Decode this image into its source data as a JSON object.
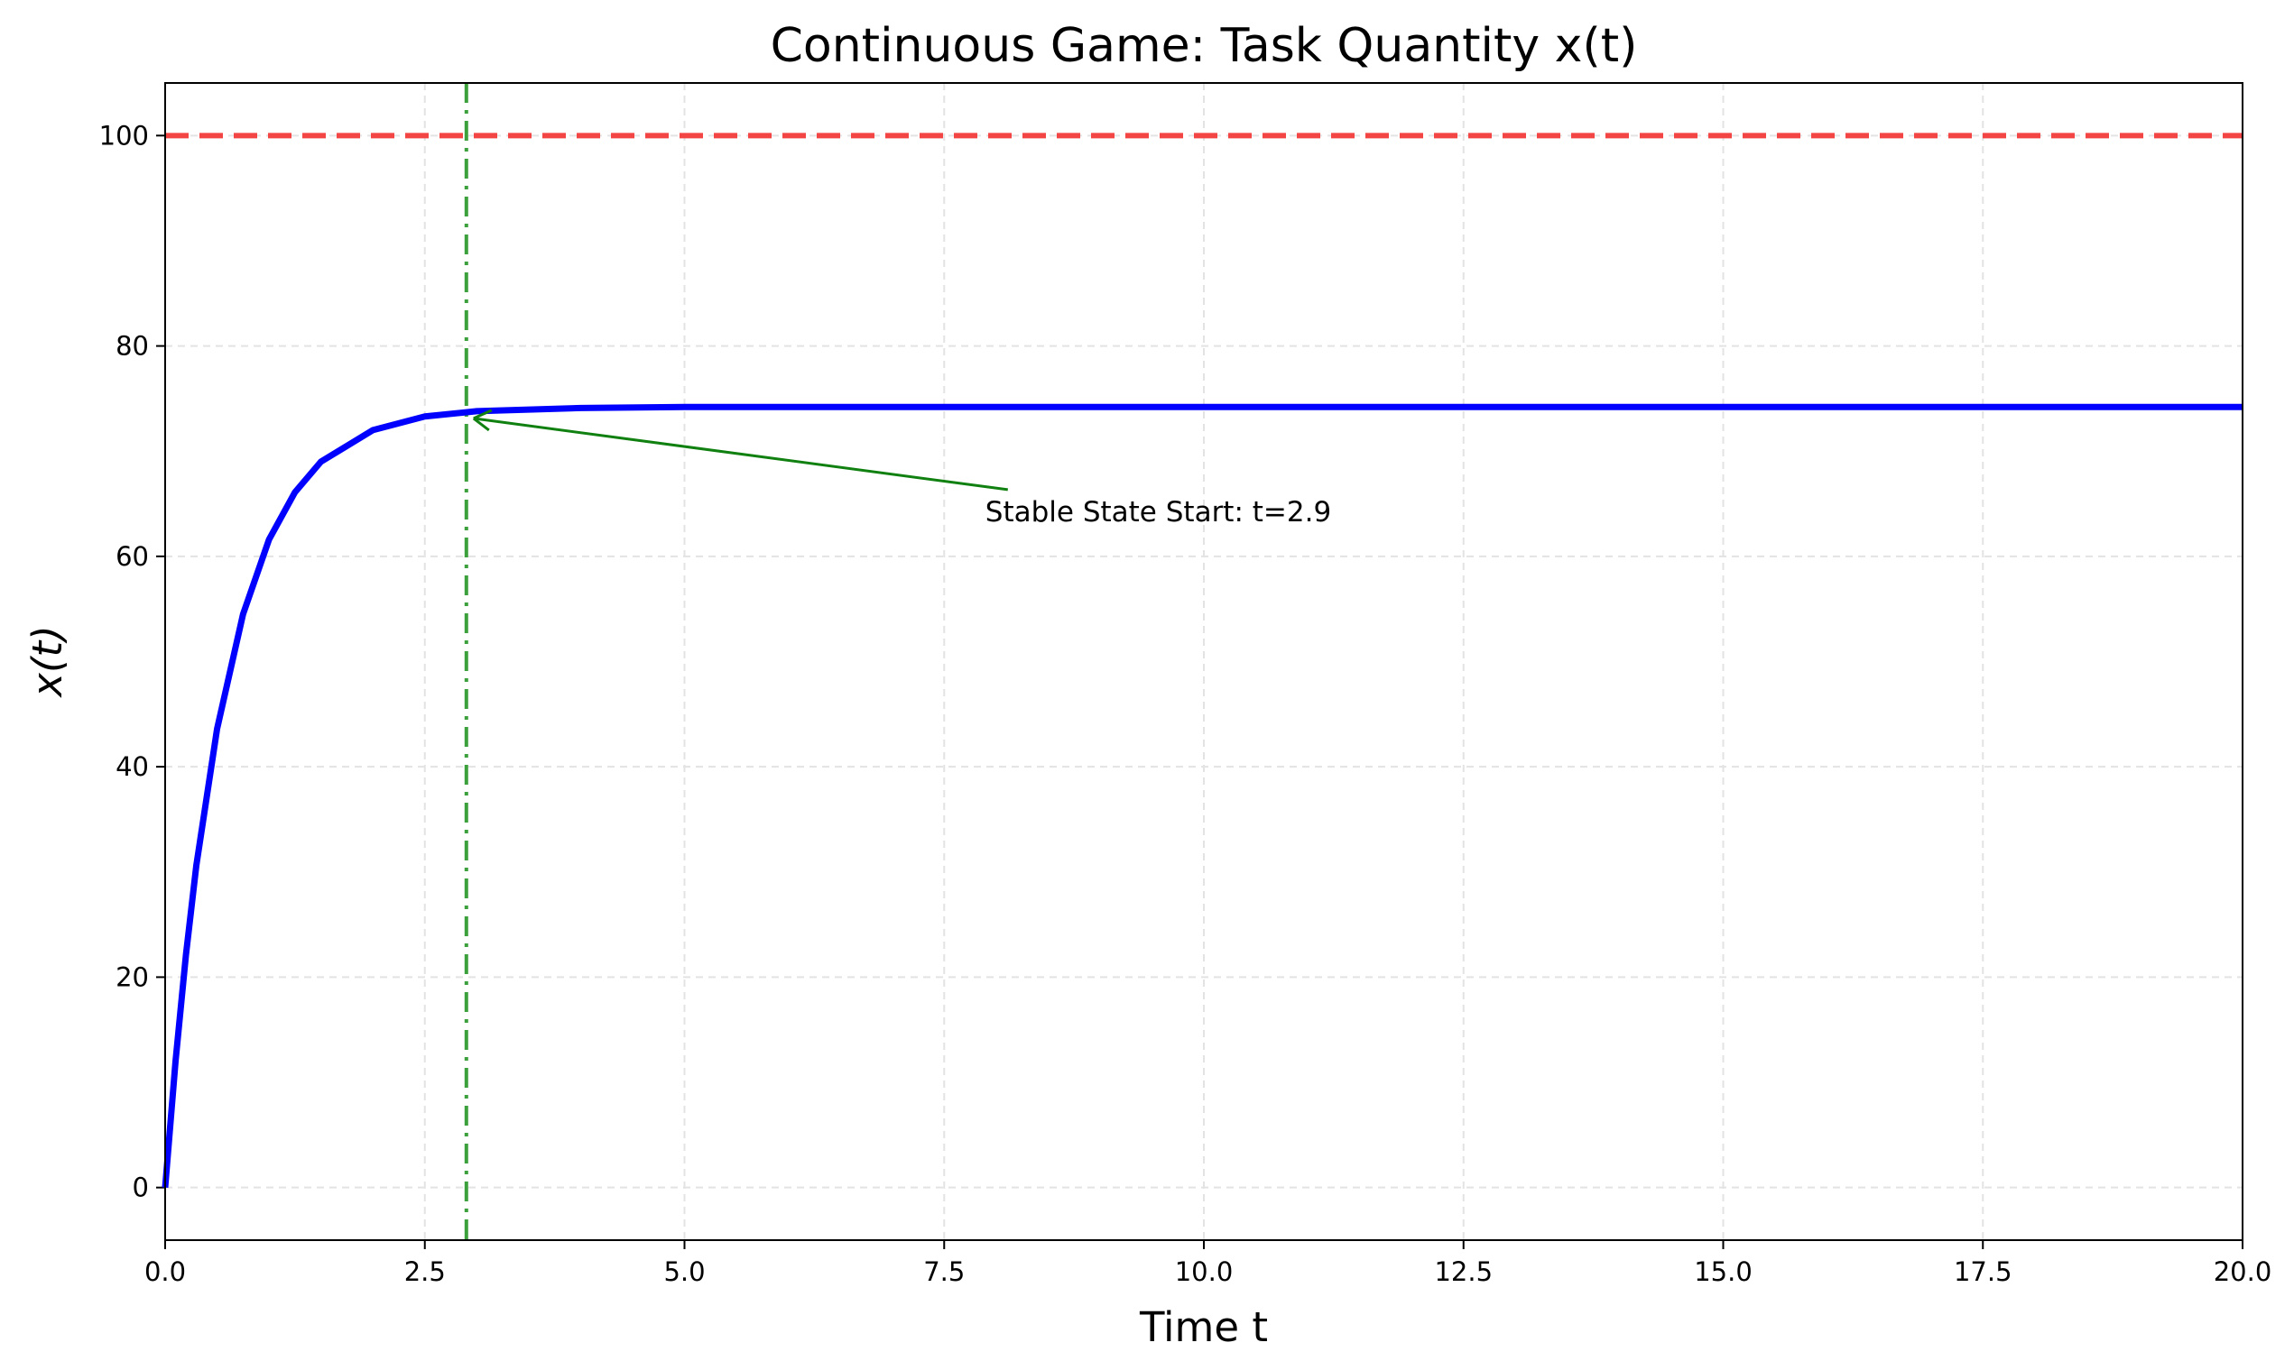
{
  "chart_data": {
    "type": "line",
    "title": "Continuous Game: Task Quantity x(t)",
    "xlabel": "Time t",
    "ylabel": "x(t)",
    "x": [
      0,
      0.1,
      0.2,
      0.3,
      0.5,
      0.75,
      1,
      1.25,
      1.5,
      2,
      2.5,
      3,
      4,
      5,
      7.5,
      10,
      15,
      20
    ],
    "values": [
      0,
      12.0,
      22.1,
      30.6,
      43.6,
      54.5,
      61.6,
      66.1,
      69.0,
      72.0,
      73.3,
      73.8,
      74.1,
      74.2,
      74.2,
      74.2,
      74.2,
      74.2
    ],
    "color": "#0000ff",
    "xlim": [
      0,
      20
    ],
    "ylim": [
      -5,
      105
    ],
    "xticks": [
      {
        "value": 0,
        "label": "0.0"
      },
      {
        "value": 2.5,
        "label": "2.5"
      },
      {
        "value": 5,
        "label": "5.0"
      },
      {
        "value": 7.5,
        "label": "7.5"
      },
      {
        "value": 10,
        "label": "10.0"
      },
      {
        "value": 12.5,
        "label": "12.5"
      },
      {
        "value": 15,
        "label": "15.0"
      },
      {
        "value": 17.5,
        "label": "17.5"
      },
      {
        "value": 20,
        "label": "20.0"
      }
    ],
    "yticks": [
      0,
      20,
      40,
      60,
      80,
      100
    ],
    "grid": true,
    "hline": {
      "value": 100,
      "color": "#f44545"
    },
    "vline": {
      "value": 2.9,
      "color": "#3ca03c"
    },
    "annotation": {
      "text": "Stable State Start: t=2.9",
      "x": 2.9,
      "y": 73.2,
      "color": "#108010"
    }
  }
}
